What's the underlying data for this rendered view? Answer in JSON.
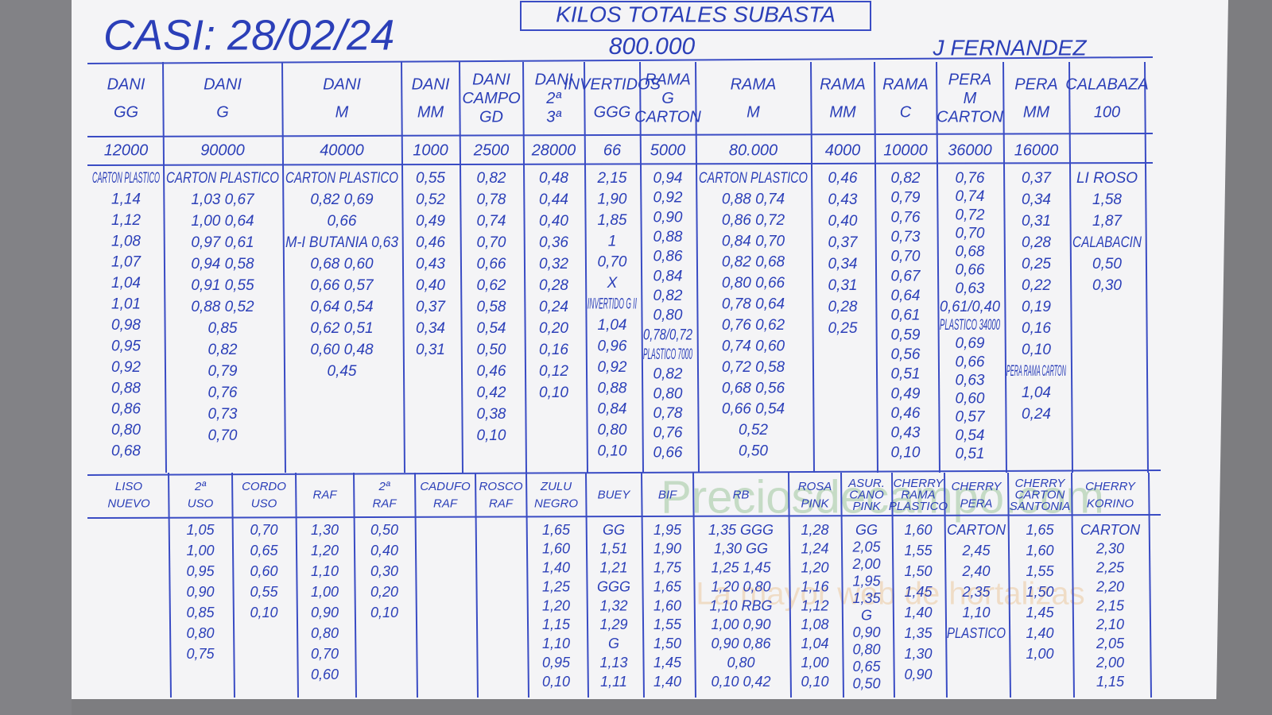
{
  "header": {
    "title": "CASI: 28/02/24",
    "subtitle": "KILOS TOTALES SUBASTA",
    "total": "800.000",
    "author": "J FERNANDEZ"
  },
  "watermark": {
    "site": "Preciosdecampo.com",
    "tagline": "La mayor web de hortalizas"
  },
  "top_columns": [
    {
      "label": "DANI GG",
      "kilos": "12000",
      "lines": [
        "CARTON PLASTICO",
        "1,14",
        "1,12",
        "1,08",
        "1,07",
        "1,04",
        "1,01",
        "0,98",
        "0,95",
        "0,92",
        "0,88",
        "0,86",
        "0,80",
        "0,68"
      ]
    },
    {
      "label": "DANI G",
      "kilos": "90000",
      "lines": [
        "CARTON PLASTICO",
        "1,03  0,67",
        "1,00  0,64",
        "0,97  0,61",
        "0,94  0,58",
        "0,91  0,55",
        "0,88  0,52",
        "0,85",
        "0,82",
        "0,79",
        "0,76",
        "0,73",
        "0,70"
      ]
    },
    {
      "label": "DANI M",
      "kilos": "40000",
      "lines": [
        "CARTON PLASTICO",
        "0,82  0,69",
        "0,66",
        "M-I BUTANIA  0,63",
        "0,68  0,60",
        "0,66  0,57",
        "0,64  0,54",
        "0,62  0,51",
        "0,60  0,48",
        "0,45"
      ]
    },
    {
      "label": "DANI MM",
      "kilos": "1000",
      "lines": [
        "0,55",
        "0,52",
        "0,49",
        "0,46",
        "0,43",
        "0,40",
        "0,37",
        "0,34",
        "0,31"
      ]
    },
    {
      "label": "DANI CAMPO GD",
      "kilos": "2500",
      "lines": [
        "0,82",
        "0,78",
        "0,74",
        "0,70",
        "0,66",
        "0,62",
        "0,58",
        "0,54",
        "0,50",
        "0,46",
        "0,42",
        "0,38",
        "0,10"
      ]
    },
    {
      "label": "DANI 2ª 3ª",
      "kilos": "28000",
      "lines": [
        "0,48",
        "0,44",
        "0,40",
        "0,36",
        "0,32",
        "0,28",
        "0,24",
        "0,20",
        "0,16",
        "0,12",
        "0,10"
      ]
    },
    {
      "label": "INVERTIDOS GGG",
      "kilos": "66",
      "lines": [
        "2,15",
        "1,90",
        "1,85",
        "1",
        "0,70",
        "X",
        "INVERTIDO G II",
        "1,04",
        "0,96",
        "0,92",
        "0,88",
        "0,84",
        "0,80",
        "0,10"
      ]
    },
    {
      "label": "RAMA G CARTON",
      "kilos": "5000",
      "lines": [
        "0,94",
        "0,92",
        "0,90",
        "0,88",
        "0,86",
        "0,84",
        "0,82",
        "0,80",
        "0,78/0,72",
        "PLASTICO 7000",
        "0,82",
        "0,80",
        "0,78",
        "0,76",
        "0,66"
      ]
    },
    {
      "label": "RAMA M",
      "kilos": "80.000",
      "lines": [
        "CARTON PLASTICO",
        "0,88  0,74",
        "0,86  0,72",
        "0,84  0,70",
        "0,82  0,68",
        "0,80  0,66",
        "0,78  0,64",
        "0,76  0,62",
        "0,74  0,60",
        "0,72  0,58",
        "0,68  0,56",
        "0,66  0,54",
        "0,52",
        "0,50"
      ]
    },
    {
      "label": "RAMA MM",
      "kilos": "4000",
      "lines": [
        "0,46",
        "0,43",
        "0,40",
        "0,37",
        "0,34",
        "0,31",
        "0,28",
        "0,25"
      ]
    },
    {
      "label": "RAMA C",
      "kilos": "10000",
      "lines": [
        "0,82",
        "0,79",
        "0,76",
        "0,73",
        "0,70",
        "0,67",
        "0,64",
        "0,61",
        "0,59",
        "0,56",
        "0,51",
        "0,49",
        "0,46",
        "0,43",
        "0,10"
      ]
    },
    {
      "label": "PERA M CARTON",
      "kilos": "36000",
      "lines": [
        "0,76",
        "0,74",
        "0,72",
        "0,70",
        "0,68",
        "0,66",
        "0,63",
        "0,61/0,40",
        "PLASTICO 34000",
        "0,69",
        "0,66",
        "0,63",
        "0,60",
        "0,57",
        "0,54",
        "0,51"
      ]
    },
    {
      "label": "PERA MM",
      "kilos": "16000",
      "lines": [
        "0,37",
        "0,34",
        "0,31",
        "0,28",
        "0,25",
        "0,22",
        "0,19",
        "0,16",
        "0,10",
        "PERA RAMA CARTON",
        "1,04",
        "0,24"
      ]
    },
    {
      "label": "CALABAZA 100",
      "kilos": "",
      "lines": [
        "LI ROSO",
        "1,58",
        "1,87",
        "CALABACIN",
        "0,50",
        "0,30"
      ]
    }
  ],
  "bottom_columns": [
    {
      "label": "LISO NUEVO",
      "lines": []
    },
    {
      "label": "2ª USO",
      "lines": [
        "1,05",
        "1,00",
        "0,95",
        "0,90",
        "0,85",
        "0,80",
        "0,75"
      ]
    },
    {
      "label": "CORDO USO",
      "lines": [
        "0,70",
        "0,65",
        "0,60",
        "0,55",
        "0,10"
      ]
    },
    {
      "label": "RAF",
      "lines": [
        "1,30",
        "1,20",
        "1,10",
        "1,00",
        "0,90",
        "0,80",
        "0,70",
        "0,60"
      ]
    },
    {
      "label": "2ª RAF",
      "lines": [
        "0,50",
        "0,40",
        "0,30",
        "0,20",
        "0,10"
      ]
    },
    {
      "label": "CADUFO RAF",
      "lines": []
    },
    {
      "label": "ROSCO RAF",
      "lines": []
    },
    {
      "label": "ZULU NEGRO",
      "lines": [
        "1,65",
        "1,60",
        "1,40",
        "1,25",
        "1,20",
        "1,15",
        "1,10",
        "0,95",
        "0,10"
      ]
    },
    {
      "label": "BUEY",
      "lines": [
        "GG",
        "1,51",
        "1,21",
        "GGG",
        "1,32",
        "1,29",
        "G",
        "1,13",
        "1,11"
      ]
    },
    {
      "label": "BIF",
      "lines": [
        "1,95",
        "1,90",
        "1,75",
        "1,65",
        "1,60",
        "1,55",
        "1,50",
        "1,45",
        "1,40"
      ]
    },
    {
      "label": "RB",
      "lines": [
        "1,35  GGG",
        "1,30  GG",
        "1,25  1,45",
        "1,20  0,80",
        "1,10  RBG",
        "1,00  0,90",
        "0,90  0,86",
        "0,80",
        "0,10  0,42"
      ]
    },
    {
      "label": "ROSA PINK",
      "lines": [
        "1,28",
        "1,24",
        "1,20",
        "1,16",
        "1,12",
        "1,08",
        "1,04",
        "1,00",
        "0,10"
      ]
    },
    {
      "label": "ASUR. CANO PINK",
      "lines": [
        "GG",
        "2,05",
        "2,00",
        "1,95",
        "1,35",
        "G",
        "0,90",
        "0,80",
        "0,65",
        "0,50"
      ]
    },
    {
      "label": "CHERRY RAMA PLASTICO",
      "lines": [
        "1,60",
        "1,55",
        "1,50",
        "1,45",
        "1,40",
        "1,35",
        "1,30",
        "0,90"
      ]
    },
    {
      "label": "CHERRY PERA",
      "lines": [
        "CARTON",
        "2,45",
        "2,40",
        "2,35",
        "1,10",
        "PLASTICO"
      ]
    },
    {
      "label": "CHERRY CARTON SANTONIA",
      "lines": [
        "1,65",
        "1,60",
        "1,55",
        "1,50",
        "1,45",
        "1,40",
        "1,00"
      ]
    },
    {
      "label": "CHERRY KORINO",
      "lines": [
        "CARTON",
        "2,30",
        "2,25",
        "2,20",
        "2,15",
        "2,10",
        "2,05",
        "2,00",
        "1,15"
      ]
    }
  ]
}
